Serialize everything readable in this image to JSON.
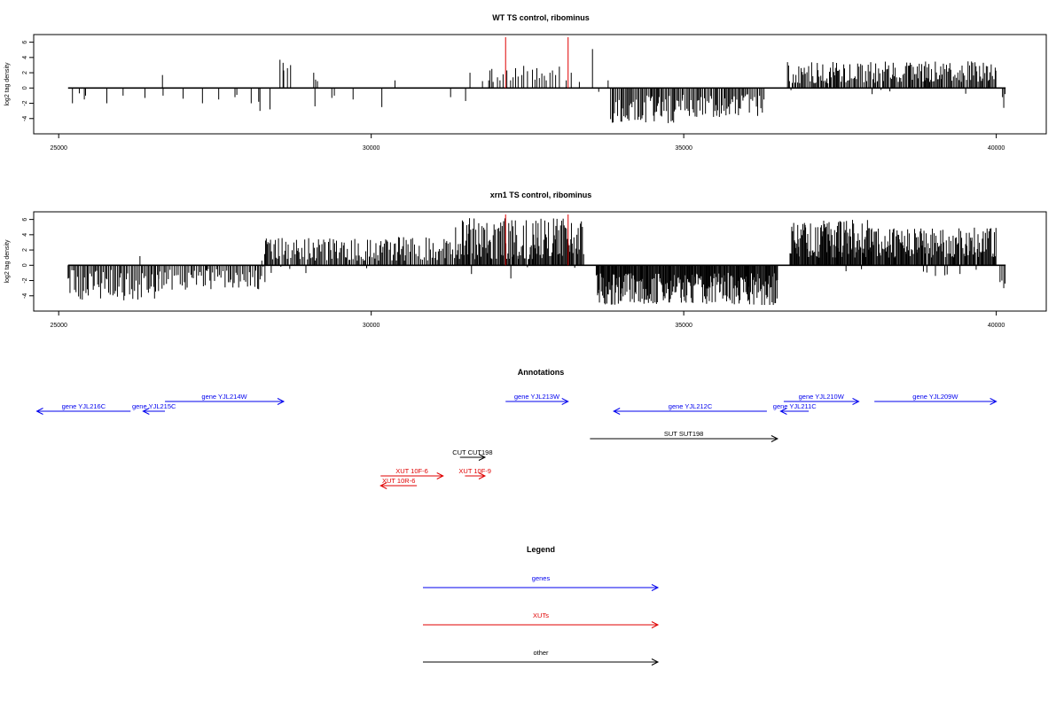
{
  "colors": {
    "axis": "#000000",
    "density": "#000000",
    "marker": "#e00000",
    "gene": "#0000ee",
    "xut": "#e00000",
    "other": "#000000"
  },
  "chart_data": [
    {
      "type": "bar",
      "title": "WT TS control, ribominus",
      "ylabel": "log2 tag density",
      "xlim": [
        24600,
        40800
      ],
      "ylim": [
        -6,
        7
      ],
      "xticks": [
        25000,
        30000,
        35000,
        40000
      ],
      "xtick_labels": [
        "25000",
        "30000",
        "35000",
        "40000"
      ],
      "yticks": [
        -4,
        -2,
        0,
        2,
        4,
        6
      ],
      "ytick_labels": [
        "-4",
        "-2",
        "0",
        "2",
        "4",
        "6"
      ],
      "baseline": {
        "from": 25150,
        "to": 40150
      },
      "markers": [
        32150,
        33150
      ],
      "series": [
        {
          "points": [
            [
              25220,
              -2.0
            ],
            [
              25330,
              -0.7
            ],
            [
              25410,
              -1.5
            ],
            [
              25430,
              -1.0
            ],
            [
              25770,
              -2.0
            ],
            [
              26030,
              -1.0
            ],
            [
              26380,
              -1.3
            ],
            [
              26660,
              1.7
            ],
            [
              26670,
              -1.0
            ],
            [
              26990,
              -1.4
            ],
            [
              27300,
              -2.0
            ],
            [
              27560,
              -1.5
            ],
            [
              27820,
              -1.2
            ],
            [
              27850,
              -0.9
            ],
            [
              28080,
              -2.0
            ],
            [
              28200,
              -1.8
            ],
            [
              28220,
              -3.0
            ],
            [
              28380,
              -2.8
            ],
            [
              28540,
              3.7
            ],
            [
              28590,
              3.3
            ],
            [
              28600,
              2.3
            ],
            [
              28660,
              2.6
            ],
            [
              28710,
              3.0
            ],
            [
              29080,
              2.0
            ],
            [
              29100,
              -2.4
            ],
            [
              29110,
              1.1
            ],
            [
              29140,
              0.9
            ],
            [
              29370,
              -1.3
            ],
            [
              29410,
              -1.0
            ],
            [
              29710,
              -1.5
            ],
            [
              30170,
              -2.5
            ],
            [
              30380,
              1.0
            ],
            [
              31270,
              -1.2
            ],
            [
              31510,
              -1.7
            ],
            [
              31580,
              2.0
            ],
            [
              31780,
              0.9
            ],
            [
              31880,
              1.0
            ],
            [
              31900,
              2.3
            ],
            [
              31930,
              2.5
            ],
            [
              31950,
              0.8
            ],
            [
              32020,
              1.4
            ],
            [
              32060,
              1.0
            ],
            [
              32110,
              1.8
            ],
            [
              32170,
              2.3
            ],
            [
              32230,
              1.0
            ],
            [
              32270,
              1.4
            ],
            [
              32310,
              2.6
            ],
            [
              32350,
              1.5
            ],
            [
              32410,
              1.7
            ],
            [
              32440,
              2.9
            ],
            [
              32500,
              2.2
            ],
            [
              32580,
              2.4
            ],
            [
              32620,
              1.1
            ],
            [
              32650,
              2.6
            ],
            [
              32690,
              1.3
            ],
            [
              32730,
              1.9
            ],
            [
              32770,
              1.6
            ],
            [
              32800,
              1.0
            ],
            [
              32860,
              2.0
            ],
            [
              32900,
              2.3
            ],
            [
              32950,
              1.7
            ],
            [
              33010,
              2.8
            ],
            [
              33120,
              1.0
            ],
            [
              33200,
              2.0
            ],
            [
              33330,
              0.8
            ],
            [
              33540,
              5.1
            ],
            [
              33640,
              -0.5
            ],
            [
              33790,
              1.0
            ]
          ],
          "dense_regions": [
            {
              "from": 33830,
              "to": 34980,
              "min": -4.6,
              "max": -0.7,
              "step": 20,
              "peak_above": 0.8
            },
            {
              "from": 34980,
              "to": 36300,
              "min": -3.8,
              "max": -0.8,
              "step": 22,
              "peak_above": 0.6
            },
            {
              "from": 36660,
              "to": 38100,
              "min": 0.6,
              "max": 3.4,
              "step": 20,
              "peak_above": 0.3
            },
            {
              "from": 38100,
              "to": 40000,
              "min": 0.8,
              "max": 3.5,
              "step": 18,
              "peak_above": 0.2
            }
          ],
          "tail": [
            [
              40100,
              -1.2
            ],
            [
              40120,
              -2.6
            ],
            [
              40140,
              -0.8
            ]
          ]
        }
      ]
    },
    {
      "type": "bar",
      "title": "xrn1 TS control, ribominus",
      "ylabel": "log2 tag density",
      "xlim": [
        24600,
        40800
      ],
      "ylim": [
        -6,
        7
      ],
      "xticks": [
        25000,
        30000,
        35000,
        40000
      ],
      "xtick_labels": [
        "25000",
        "30000",
        "35000",
        "40000"
      ],
      "yticks": [
        -4,
        -2,
        0,
        2,
        4,
        6
      ],
      "ytick_labels": [
        "-4",
        "-2",
        "0",
        "2",
        "4",
        "6"
      ],
      "baseline": {
        "from": 25150,
        "to": 40150
      },
      "markers": [
        32150,
        33150
      ],
      "series": [
        {
          "points": [
            [
              26300,
              1.2
            ],
            [
              28300,
              -2.2
            ],
            [
              28400,
              -1.0
            ]
          ],
          "dense_regions": [
            {
              "from": 25150,
              "to": 26600,
              "min": -4.6,
              "max": -0.6,
              "step": 22,
              "peak_above": 0.9
            },
            {
              "from": 26600,
              "to": 28250,
              "min": -3.2,
              "max": -0.5,
              "step": 25,
              "peak_above": 0.8
            },
            {
              "from": 28250,
              "to": 29600,
              "min": 0.6,
              "max": 3.6,
              "step": 20,
              "peak_above": 0.25
            },
            {
              "from": 29600,
              "to": 31350,
              "min": 0.6,
              "max": 3.7,
              "step": 22,
              "peak_above": 0.3
            },
            {
              "from": 31350,
              "to": 33400,
              "min": 0.8,
              "max": 6.2,
              "step": 14,
              "peak_above": 0.12
            },
            {
              "from": 33600,
              "to": 36500,
              "min": -5.2,
              "max": -1.0,
              "step": 12,
              "peak_above": 0.97
            },
            {
              "from": 36700,
              "to": 38000,
              "min": 1.0,
              "max": 6.0,
              "step": 12,
              "peak_above": 0.15
            },
            {
              "from": 38000,
              "to": 40000,
              "min": 1.0,
              "max": 5.0,
              "step": 13,
              "peak_above": 0.25
            }
          ],
          "tail": [
            [
              40060,
              -2.2
            ],
            [
              40090,
              -2.0
            ],
            [
              40120,
              -3.0
            ],
            [
              40140,
              -2.4
            ]
          ]
        }
      ]
    }
  ],
  "annotations": {
    "title": "Annotations",
    "features": [
      {
        "label": "gene YJL216C",
        "kind": "gene",
        "start": 24650,
        "end": 26150,
        "strand": "-",
        "row": 1
      },
      {
        "label": "gene YJL215C",
        "kind": "gene",
        "start": 26350,
        "end": 26700,
        "strand": "-",
        "row": 1
      },
      {
        "label": "gene YJL214W",
        "kind": "gene",
        "start": 26700,
        "end": 28600,
        "strand": "+",
        "row": 0
      },
      {
        "label": "gene YJL213W",
        "kind": "gene",
        "start": 32150,
        "end": 33150,
        "strand": "+",
        "row": 0
      },
      {
        "label": "gene YJL212C",
        "kind": "gene",
        "start": 33880,
        "end": 36330,
        "strand": "-",
        "row": 1
      },
      {
        "label": "gene YJL211C",
        "kind": "gene",
        "start": 36550,
        "end": 37000,
        "strand": "-",
        "row": 1
      },
      {
        "label": "gene YJL210W",
        "kind": "gene",
        "start": 36600,
        "end": 37800,
        "strand": "+",
        "row": 0
      },
      {
        "label": "gene YJL209W",
        "kind": "gene",
        "start": 38050,
        "end": 40000,
        "strand": "+",
        "row": 0
      },
      {
        "label": "SUT SUT198",
        "kind": "other",
        "start": 33500,
        "end": 36500,
        "strand": "+",
        "row": 2
      },
      {
        "label": "CUT CUT198",
        "kind": "other",
        "start": 31420,
        "end": 31820,
        "strand": "+",
        "row": 3
      },
      {
        "label": "XUT 10F-6",
        "kind": "xut",
        "start": 30150,
        "end": 31150,
        "strand": "+",
        "row": 4
      },
      {
        "label": "XUT 10F-9",
        "kind": "xut",
        "start": 31500,
        "end": 31820,
        "strand": "+",
        "row": 4
      },
      {
        "label": "XUT 10R-6",
        "kind": "xut",
        "start": 30150,
        "end": 30730,
        "strand": "-",
        "row": 5
      }
    ]
  },
  "legend": {
    "title": "Legend",
    "entries": [
      {
        "label": "genes",
        "kind": "gene"
      },
      {
        "label": "XUTs",
        "kind": "xut"
      },
      {
        "label": "other",
        "kind": "other"
      }
    ]
  }
}
